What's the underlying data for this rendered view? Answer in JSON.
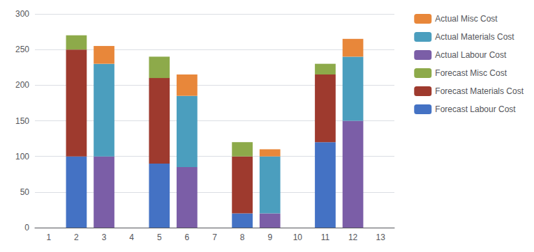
{
  "chart_data": {
    "type": "bar",
    "categories": [
      1,
      2,
      3,
      4,
      5,
      6,
      7,
      8,
      9,
      10,
      11,
      12,
      13
    ],
    "series": [
      {
        "name": "Forecast Labour Cost",
        "color": "#4472C4",
        "values": [
          0,
          100,
          0,
          0,
          90,
          0,
          0,
          20,
          0,
          0,
          120,
          0,
          0
        ]
      },
      {
        "name": "Forecast Materials Cost",
        "color": "#9E3A2E",
        "values": [
          0,
          150,
          0,
          0,
          120,
          0,
          0,
          80,
          0,
          0,
          95,
          0,
          0
        ]
      },
      {
        "name": "Forecast Misc Cost",
        "color": "#8DAA4A",
        "values": [
          0,
          20,
          0,
          0,
          30,
          0,
          0,
          20,
          0,
          0,
          15,
          0,
          0
        ]
      },
      {
        "name": "Actual Labour Cost",
        "color": "#7B5EA7",
        "values": [
          0,
          0,
          100,
          0,
          0,
          85,
          0,
          0,
          20,
          0,
          0,
          150,
          0
        ]
      },
      {
        "name": "Actual Materials Cost",
        "color": "#4B9EBE",
        "values": [
          0,
          0,
          130,
          0,
          0,
          100,
          0,
          0,
          80,
          0,
          0,
          90,
          0
        ]
      },
      {
        "name": "Actual Misc Cost",
        "color": "#E8873A",
        "values": [
          0,
          0,
          25,
          0,
          0,
          30,
          0,
          0,
          10,
          0,
          0,
          25,
          0
        ]
      }
    ],
    "stacked": true,
    "ylim": [
      0,
      300
    ],
    "yticks": [
      0,
      50,
      100,
      150,
      200,
      250,
      300
    ],
    "grid": true,
    "legend": "right"
  }
}
